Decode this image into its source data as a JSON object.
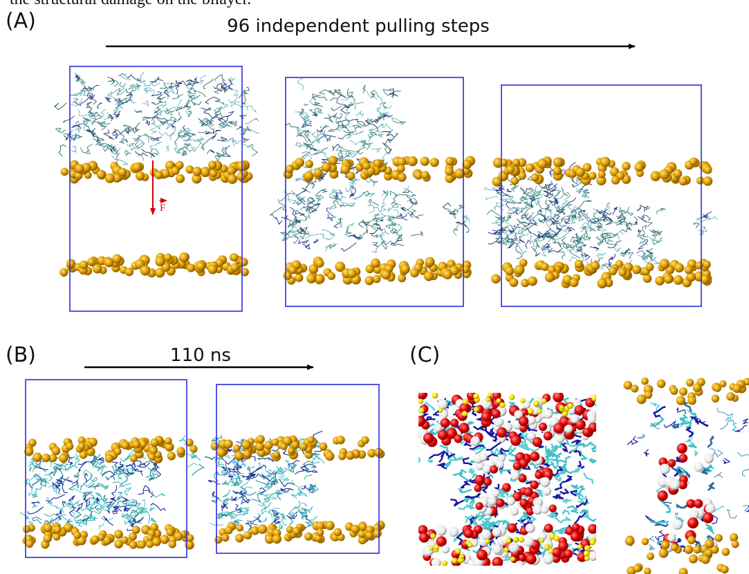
{
  "caption_fragment": "the structural damage on the bilayer.",
  "panels": [
    {
      "label": "(A)",
      "annotation": "96 independent pulling steps",
      "force_label": "F"
    },
    {
      "label": "(B)",
      "annotation": "110 ns"
    },
    {
      "label": "(C)"
    }
  ]
}
